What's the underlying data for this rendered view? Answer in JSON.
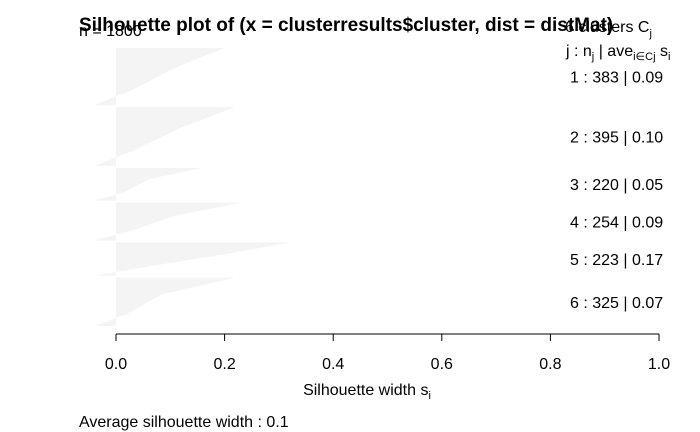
{
  "chart_data": {
    "type": "bar",
    "title": "Silhouette plot of (x = clusterresults$cluster, dist = distMat)",
    "n_label": "n = 1800",
    "header": {
      "clusters_prefix": "6  clusters  C",
      "clusters_sub": "j",
      "col_j": "j :  n",
      "col_j_sub": "j",
      "col_ave": " | ave",
      "col_ave_sub": "i∈Cj",
      "col_s": "  s",
      "col_s_sub": "i"
    },
    "clusters": [
      {
        "label": "1 :   383  |  0.09",
        "n": 383,
        "avg": 0.09,
        "max": 0.2
      },
      {
        "label": "2 :   395  |  0.10",
        "n": 395,
        "avg": 0.1,
        "max": 0.22
      },
      {
        "label": "3 :   220  |  0.05",
        "n": 220,
        "avg": 0.05,
        "max": 0.16
      },
      {
        "label": "4 :   254  |  0.09",
        "n": 254,
        "avg": 0.09,
        "max": 0.23
      },
      {
        "label": "5 :   223  |  0.17",
        "n": 223,
        "avg": 0.17,
        "max": 0.32
      },
      {
        "label": "6 :   325  |  0.07",
        "n": 325,
        "avg": 0.07,
        "max": 0.22
      }
    ],
    "x_ticks": [
      "0.0",
      "0.2",
      "0.4",
      "0.6",
      "0.8",
      "1.0"
    ],
    "xlabel": "Silhouette width s",
    "xlabel_sub": "i",
    "xlim": [
      0,
      1
    ],
    "footer": "Average silhouette width :  0.1",
    "bar_color": "#f4f4f4"
  }
}
